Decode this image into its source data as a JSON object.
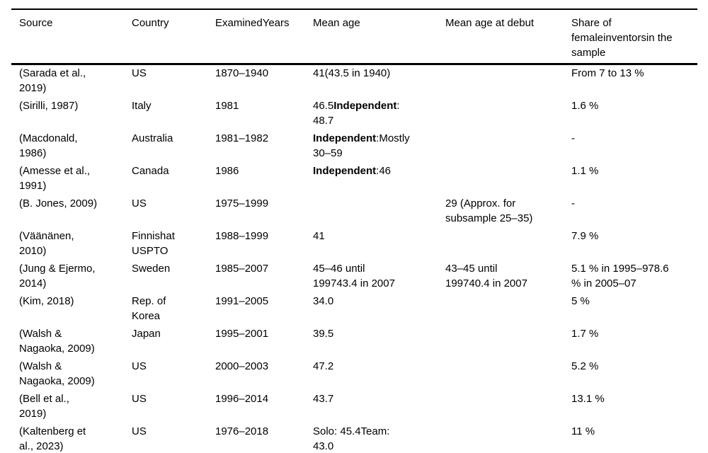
{
  "colors": {
    "background": "#ffffff",
    "text": "#000000",
    "rule": "#000000"
  },
  "table": {
    "columns": [
      {
        "key": "source",
        "label": "Source"
      },
      {
        "key": "country",
        "label": "Country"
      },
      {
        "key": "years",
        "label": "ExaminedYears"
      },
      {
        "key": "mean_age",
        "label": "Mean age"
      },
      {
        "key": "debut",
        "label": "Mean age at debut"
      },
      {
        "key": "share",
        "label": "Share of\nfemaleinventorsin the\nsample"
      }
    ],
    "rows": [
      {
        "source": "(Sarada et al.,\n2019)",
        "country": "US",
        "years": "1870–1940",
        "mean_age": "41(43.5 in 1940)",
        "debut": "",
        "share": "From 7 to 13 %"
      },
      {
        "source": "(Sirilli, 1987)",
        "country": "Italy",
        "years": "1981",
        "mean_age": [
          {
            "t": "46.5"
          },
          {
            "t": "Independent",
            "b": true
          },
          {
            "t": ":\n48.7"
          }
        ],
        "debut": "",
        "share": "1.6 %"
      },
      {
        "source": "(Macdonald,\n1986)",
        "country": "Australia",
        "years": "1981–1982",
        "mean_age": [
          {
            "t": "Independent",
            "b": true
          },
          {
            "t": ":Mostly\n30–59"
          }
        ],
        "debut": "",
        "share": "-"
      },
      {
        "source": "(Amesse et al.,\n1991)",
        "country": "Canada",
        "years": "1986",
        "mean_age": [
          {
            "t": "Independent",
            "b": true
          },
          {
            "t": ":46"
          }
        ],
        "debut": "",
        "share": "1.1 %"
      },
      {
        "source": "(B. Jones, 2009)",
        "country": "US",
        "years": "1975–1999",
        "mean_age": "",
        "debut": "29 (Approx. for\nsubsample 25–35)",
        "share": "-"
      },
      {
        "source": "(Väänänen,\n2010)",
        "country": "Finnishat\nUSPTO",
        "years": "1988–1999",
        "mean_age": "41",
        "debut": "",
        "share": "7.9 %"
      },
      {
        "source": "(Jung & Ejermo,\n2014)",
        "country": "Sweden",
        "years": "1985–2007",
        "mean_age": "45–46 until\n199743.4 in 2007",
        "debut": "43–45 until\n199740.4 in 2007",
        "share": "5.1 % in 1995–978.6\n% in 2005–07"
      },
      {
        "source": "(Kim, 2018)",
        "country": "Rep. of\nKorea",
        "years": "1991–2005",
        "mean_age": "34.0",
        "debut": "",
        "share": "5 %"
      },
      {
        "source": "(Walsh &\nNagaoka, 2009)",
        "country": "Japan",
        "years": "1995–2001",
        "mean_age": "39.5",
        "debut": "",
        "share": "1.7 %"
      },
      {
        "source": "(Walsh &\nNagaoka, 2009)",
        "country": "US",
        "years": "2000–2003",
        "mean_age": "47.2",
        "debut": "",
        "share": "5.2 %"
      },
      {
        "source": "(Bell et al.,\n2019)",
        "country": "US",
        "years": "1996–2014",
        "mean_age": "43.7",
        "debut": "",
        "share": "13.1 %"
      },
      {
        "source": "(Kaltenberg et\nal., 2023)",
        "country": "US",
        "years": "1976–2018",
        "mean_age": "Solo: 45.4Team:\n43.0",
        "debut": "",
        "share": "11 %"
      }
    ]
  }
}
